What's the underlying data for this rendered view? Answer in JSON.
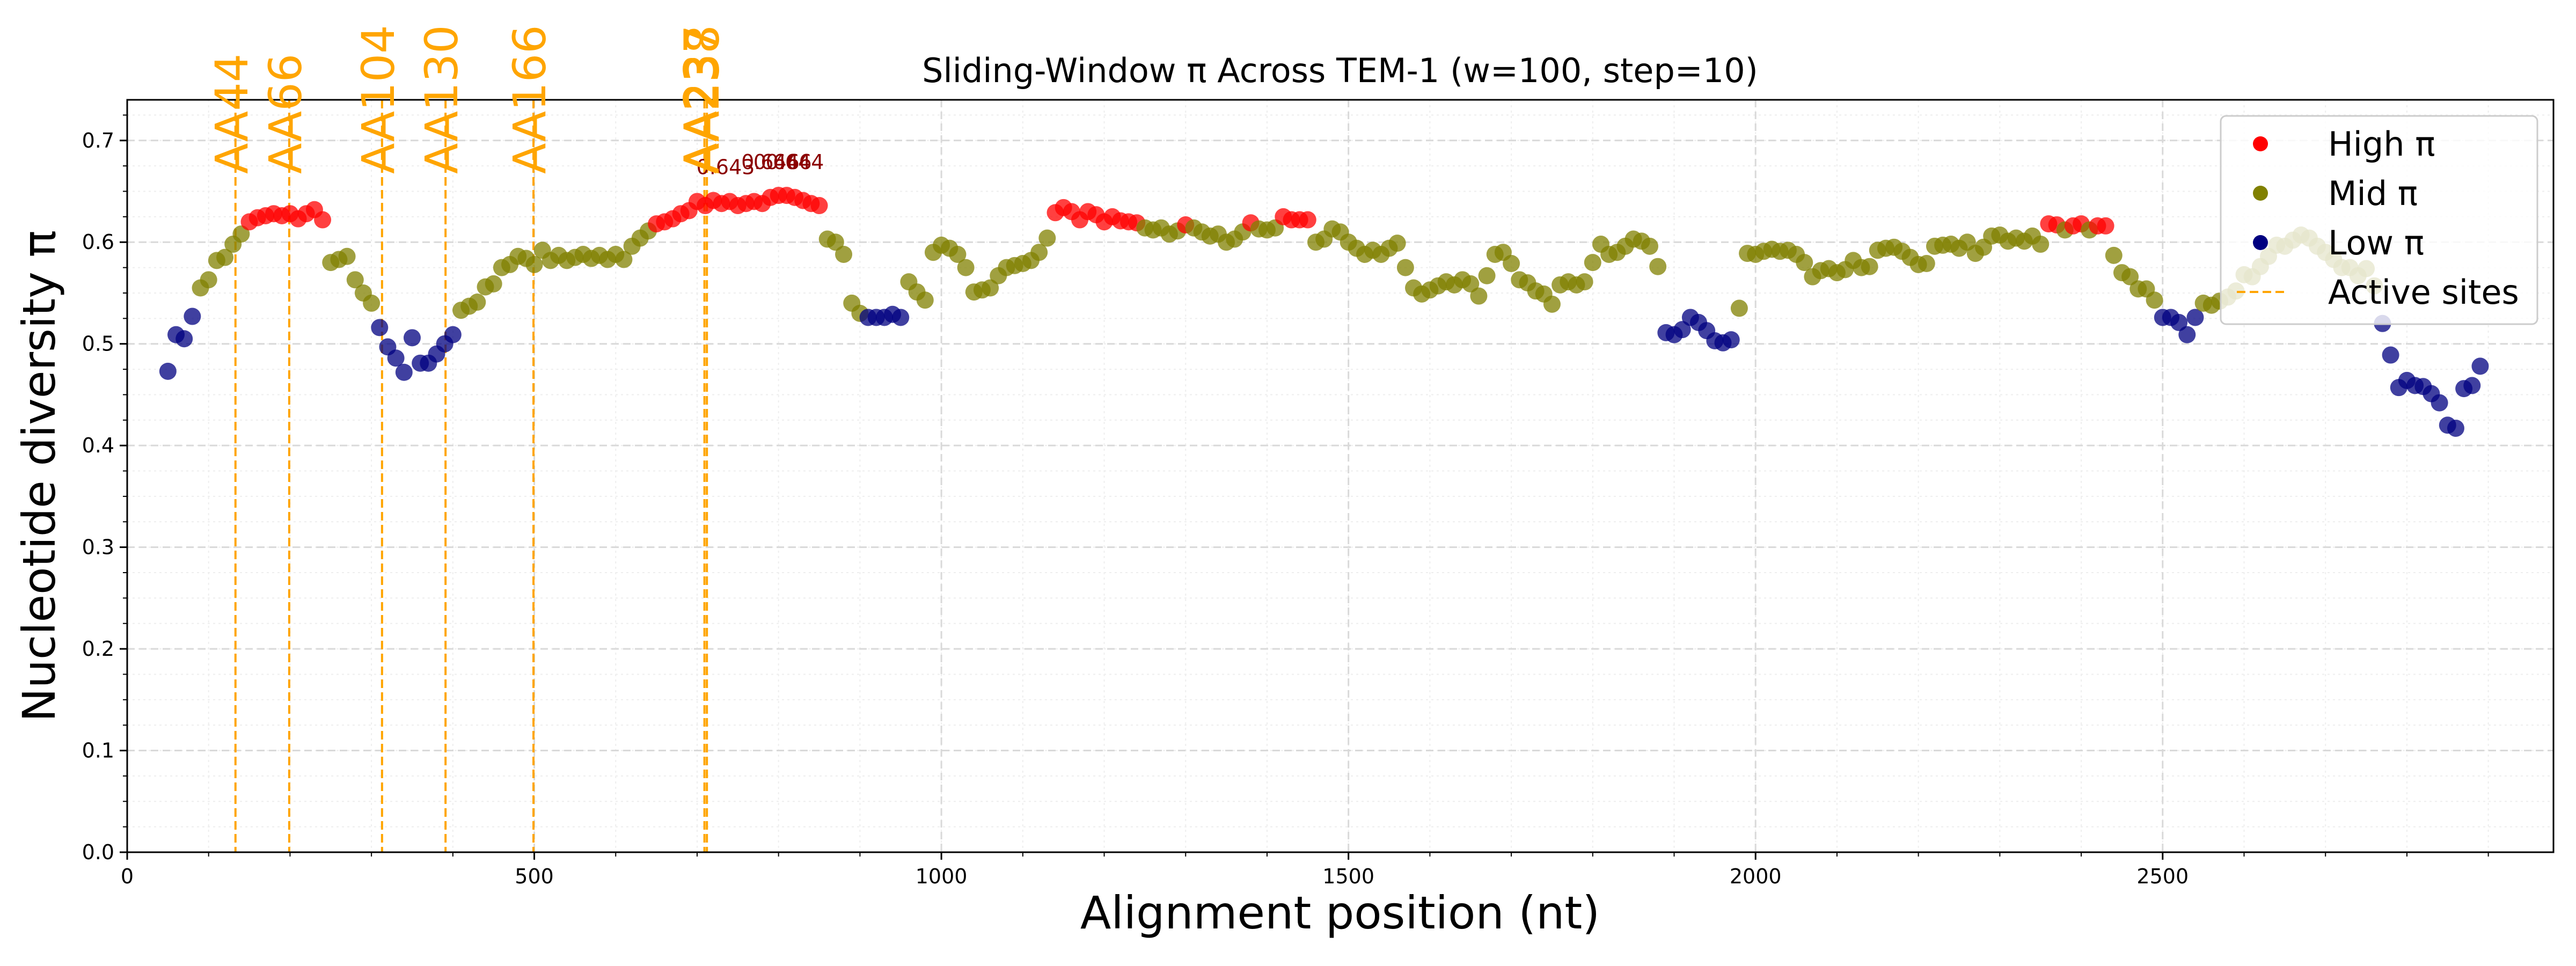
{
  "chart_data": {
    "type": "scatter",
    "title": "Sliding-Window π Across TEM-1 (w=100, step=10)",
    "xlabel": "Alignment position (nt)",
    "ylabel": "Nucleotide diversity π",
    "xlim": [
      0,
      2980
    ],
    "ylim": [
      0,
      0.74
    ],
    "x_ticks": [
      0,
      500,
      1000,
      1500,
      2000,
      2500
    ],
    "y_ticks": [
      0.0,
      0.1,
      0.2,
      0.3,
      0.4,
      0.5,
      0.6,
      0.7
    ],
    "grid": true,
    "legend_position": "upper right",
    "legend": [
      {
        "label": "High π",
        "kind": "marker",
        "color": "#ff0000"
      },
      {
        "label": "Mid π",
        "kind": "marker",
        "color": "#808000"
      },
      {
        "label": "Low π",
        "kind": "marker",
        "color": "#000080"
      },
      {
        "label": "Active sites",
        "kind": "dashed-line",
        "color": "#ffa500"
      }
    ],
    "categories": {
      "High π": {
        "color": "#ff0000",
        "min": 0.615
      },
      "Mid π": {
        "color": "#808000",
        "min": 0.53
      },
      "Low π": {
        "color": "#000080",
        "min": 0
      }
    },
    "active_sites": [
      {
        "label": "AA44",
        "x": 133
      },
      {
        "label": "AA66",
        "x": 199
      },
      {
        "label": "AA104",
        "x": 313
      },
      {
        "label": "AA130",
        "x": 391
      },
      {
        "label": "AA166",
        "x": 499
      },
      {
        "label": "AA237",
        "x": 709
      },
      {
        "label": "AA238",
        "x": 712
      }
    ],
    "annotations": [
      {
        "text": "0.643",
        "x": 735,
        "y": 0.667
      },
      {
        "text": "0.646",
        "x": 790,
        "y": 0.672
      },
      {
        "text": "0.646",
        "x": 805,
        "y": 0.672
      },
      {
        "text": "0.644",
        "x": 820,
        "y": 0.672
      }
    ],
    "points": [
      [
        50,
        0.473
      ],
      [
        60,
        0.509
      ],
      [
        70,
        0.505
      ],
      [
        80,
        0.527
      ],
      [
        90,
        0.555
      ],
      [
        100,
        0.563
      ],
      [
        110,
        0.582
      ],
      [
        120,
        0.585
      ],
      [
        130,
        0.598
      ],
      [
        140,
        0.608
      ],
      [
        150,
        0.62
      ],
      [
        160,
        0.624
      ],
      [
        170,
        0.626
      ],
      [
        180,
        0.628
      ],
      [
        190,
        0.626
      ],
      [
        200,
        0.628
      ],
      [
        210,
        0.623
      ],
      [
        220,
        0.628
      ],
      [
        230,
        0.632
      ],
      [
        240,
        0.622
      ],
      [
        250,
        0.58
      ],
      [
        260,
        0.583
      ],
      [
        270,
        0.586
      ],
      [
        280,
        0.563
      ],
      [
        290,
        0.55
      ],
      [
        300,
        0.54
      ],
      [
        310,
        0.516
      ],
      [
        320,
        0.497
      ],
      [
        330,
        0.486
      ],
      [
        340,
        0.472
      ],
      [
        350,
        0.506
      ],
      [
        360,
        0.481
      ],
      [
        370,
        0.481
      ],
      [
        380,
        0.49
      ],
      [
        390,
        0.5
      ],
      [
        400,
        0.509
      ],
      [
        410,
        0.533
      ],
      [
        420,
        0.537
      ],
      [
        430,
        0.541
      ],
      [
        440,
        0.556
      ],
      [
        450,
        0.559
      ],
      [
        460,
        0.575
      ],
      [
        470,
        0.578
      ],
      [
        480,
        0.586
      ],
      [
        490,
        0.584
      ],
      [
        500,
        0.578
      ],
      [
        510,
        0.592
      ],
      [
        520,
        0.582
      ],
      [
        530,
        0.587
      ],
      [
        540,
        0.582
      ],
      [
        550,
        0.585
      ],
      [
        560,
        0.588
      ],
      [
        570,
        0.584
      ],
      [
        580,
        0.587
      ],
      [
        590,
        0.583
      ],
      [
        600,
        0.588
      ],
      [
        610,
        0.583
      ],
      [
        620,
        0.596
      ],
      [
        630,
        0.604
      ],
      [
        640,
        0.611
      ],
      [
        650,
        0.618
      ],
      [
        660,
        0.62
      ],
      [
        670,
        0.623
      ],
      [
        680,
        0.628
      ],
      [
        690,
        0.631
      ],
      [
        700,
        0.64
      ],
      [
        710,
        0.636
      ],
      [
        720,
        0.641
      ],
      [
        730,
        0.638
      ],
      [
        740,
        0.64
      ],
      [
        750,
        0.636
      ],
      [
        760,
        0.638
      ],
      [
        770,
        0.64
      ],
      [
        780,
        0.638
      ],
      [
        790,
        0.644
      ],
      [
        800,
        0.646
      ],
      [
        810,
        0.646
      ],
      [
        820,
        0.644
      ],
      [
        830,
        0.641
      ],
      [
        840,
        0.638
      ],
      [
        850,
        0.636
      ],
      [
        860,
        0.603
      ],
      [
        870,
        0.6
      ],
      [
        880,
        0.588
      ],
      [
        890,
        0.54
      ],
      [
        900,
        0.53
      ],
      [
        910,
        0.526
      ],
      [
        920,
        0.526
      ],
      [
        930,
        0.526
      ],
      [
        940,
        0.529
      ],
      [
        950,
        0.526
      ],
      [
        960,
        0.561
      ],
      [
        970,
        0.551
      ],
      [
        980,
        0.543
      ],
      [
        990,
        0.59
      ],
      [
        1000,
        0.597
      ],
      [
        1010,
        0.594
      ],
      [
        1020,
        0.588
      ],
      [
        1030,
        0.575
      ],
      [
        1040,
        0.551
      ],
      [
        1050,
        0.553
      ],
      [
        1060,
        0.555
      ],
      [
        1070,
        0.567
      ],
      [
        1080,
        0.575
      ],
      [
        1090,
        0.577
      ],
      [
        1100,
        0.579
      ],
      [
        1110,
        0.582
      ],
      [
        1120,
        0.59
      ],
      [
        1130,
        0.604
      ],
      [
        1140,
        0.629
      ],
      [
        1150,
        0.634
      ],
      [
        1160,
        0.63
      ],
      [
        1170,
        0.622
      ],
      [
        1180,
        0.63
      ],
      [
        1190,
        0.627
      ],
      [
        1200,
        0.62
      ],
      [
        1210,
        0.625
      ],
      [
        1220,
        0.621
      ],
      [
        1230,
        0.62
      ],
      [
        1240,
        0.619
      ],
      [
        1250,
        0.614
      ],
      [
        1260,
        0.612
      ],
      [
        1270,
        0.614
      ],
      [
        1280,
        0.608
      ],
      [
        1290,
        0.611
      ],
      [
        1300,
        0.617
      ],
      [
        1310,
        0.614
      ],
      [
        1320,
        0.61
      ],
      [
        1330,
        0.606
      ],
      [
        1340,
        0.608
      ],
      [
        1350,
        0.6
      ],
      [
        1360,
        0.603
      ],
      [
        1370,
        0.61
      ],
      [
        1380,
        0.619
      ],
      [
        1390,
        0.613
      ],
      [
        1400,
        0.612
      ],
      [
        1410,
        0.614
      ],
      [
        1420,
        0.625
      ],
      [
        1430,
        0.622
      ],
      [
        1440,
        0.622
      ],
      [
        1450,
        0.622
      ],
      [
        1460,
        0.6
      ],
      [
        1470,
        0.603
      ],
      [
        1480,
        0.613
      ],
      [
        1490,
        0.61
      ],
      [
        1500,
        0.6
      ],
      [
        1510,
        0.594
      ],
      [
        1520,
        0.588
      ],
      [
        1530,
        0.592
      ],
      [
        1540,
        0.588
      ],
      [
        1550,
        0.594
      ],
      [
        1560,
        0.599
      ],
      [
        1570,
        0.575
      ],
      [
        1580,
        0.555
      ],
      [
        1590,
        0.549
      ],
      [
        1600,
        0.553
      ],
      [
        1610,
        0.557
      ],
      [
        1620,
        0.561
      ],
      [
        1630,
        0.558
      ],
      [
        1640,
        0.563
      ],
      [
        1650,
        0.559
      ],
      [
        1660,
        0.547
      ],
      [
        1670,
        0.567
      ],
      [
        1680,
        0.588
      ],
      [
        1690,
        0.59
      ],
      [
        1700,
        0.579
      ],
      [
        1710,
        0.563
      ],
      [
        1720,
        0.56
      ],
      [
        1730,
        0.552
      ],
      [
        1740,
        0.549
      ],
      [
        1750,
        0.539
      ],
      [
        1760,
        0.558
      ],
      [
        1770,
        0.561
      ],
      [
        1780,
        0.558
      ],
      [
        1790,
        0.561
      ],
      [
        1800,
        0.58
      ],
      [
        1810,
        0.598
      ],
      [
        1820,
        0.588
      ],
      [
        1830,
        0.59
      ],
      [
        1840,
        0.596
      ],
      [
        1850,
        0.603
      ],
      [
        1860,
        0.601
      ],
      [
        1870,
        0.596
      ],
      [
        1880,
        0.576
      ],
      [
        1890,
        0.511
      ],
      [
        1900,
        0.509
      ],
      [
        1910,
        0.514
      ],
      [
        1920,
        0.526
      ],
      [
        1930,
        0.521
      ],
      [
        1940,
        0.513
      ],
      [
        1950,
        0.503
      ],
      [
        1960,
        0.501
      ],
      [
        1970,
        0.504
      ],
      [
        1980,
        0.535
      ],
      [
        1990,
        0.589
      ],
      [
        2000,
        0.588
      ],
      [
        2010,
        0.591
      ],
      [
        2020,
        0.593
      ],
      [
        2030,
        0.591
      ],
      [
        2040,
        0.592
      ],
      [
        2050,
        0.588
      ],
      [
        2060,
        0.58
      ],
      [
        2070,
        0.566
      ],
      [
        2080,
        0.572
      ],
      [
        2090,
        0.574
      ],
      [
        2100,
        0.57
      ],
      [
        2110,
        0.573
      ],
      [
        2120,
        0.582
      ],
      [
        2130,
        0.575
      ],
      [
        2140,
        0.576
      ],
      [
        2150,
        0.592
      ],
      [
        2160,
        0.594
      ],
      [
        2170,
        0.595
      ],
      [
        2180,
        0.591
      ],
      [
        2190,
        0.585
      ],
      [
        2200,
        0.578
      ],
      [
        2210,
        0.579
      ],
      [
        2220,
        0.596
      ],
      [
        2230,
        0.597
      ],
      [
        2240,
        0.598
      ],
      [
        2250,
        0.594
      ],
      [
        2260,
        0.6
      ],
      [
        2270,
        0.589
      ],
      [
        2280,
        0.595
      ],
      [
        2290,
        0.606
      ],
      [
        2300,
        0.607
      ],
      [
        2310,
        0.601
      ],
      [
        2320,
        0.604
      ],
      [
        2330,
        0.601
      ],
      [
        2340,
        0.606
      ],
      [
        2350,
        0.598
      ],
      [
        2360,
        0.618
      ],
      [
        2370,
        0.617
      ],
      [
        2380,
        0.612
      ],
      [
        2390,
        0.616
      ],
      [
        2400,
        0.618
      ],
      [
        2410,
        0.612
      ],
      [
        2420,
        0.616
      ],
      [
        2430,
        0.616
      ],
      [
        2440,
        0.587
      ],
      [
        2450,
        0.57
      ],
      [
        2460,
        0.566
      ],
      [
        2470,
        0.554
      ],
      [
        2480,
        0.554
      ],
      [
        2490,
        0.543
      ],
      [
        2500,
        0.526
      ],
      [
        2510,
        0.526
      ],
      [
        2520,
        0.521
      ],
      [
        2530,
        0.509
      ],
      [
        2540,
        0.526
      ],
      [
        2550,
        0.54
      ],
      [
        2560,
        0.538
      ],
      [
        2570,
        0.542
      ],
      [
        2580,
        0.546
      ],
      [
        2590,
        0.552
      ],
      [
        2600,
        0.568
      ],
      [
        2610,
        0.566
      ],
      [
        2620,
        0.576
      ],
      [
        2630,
        0.586
      ],
      [
        2640,
        0.597
      ],
      [
        2650,
        0.596
      ],
      [
        2660,
        0.602
      ],
      [
        2670,
        0.607
      ],
      [
        2680,
        0.604
      ],
      [
        2690,
        0.596
      ],
      [
        2700,
        0.59
      ],
      [
        2710,
        0.583
      ],
      [
        2720,
        0.575
      ],
      [
        2730,
        0.575
      ],
      [
        2740,
        0.567
      ],
      [
        2750,
        0.574
      ],
      [
        2760,
        0.557
      ],
      [
        2770,
        0.52
      ],
      [
        2780,
        0.489
      ],
      [
        2790,
        0.457
      ],
      [
        2800,
        0.464
      ],
      [
        2810,
        0.459
      ],
      [
        2820,
        0.458
      ],
      [
        2830,
        0.451
      ],
      [
        2840,
        0.442
      ],
      [
        2850,
        0.42
      ],
      [
        2860,
        0.417
      ],
      [
        2870,
        0.456
      ],
      [
        2880,
        0.459
      ],
      [
        2890,
        0.478
      ]
    ]
  }
}
